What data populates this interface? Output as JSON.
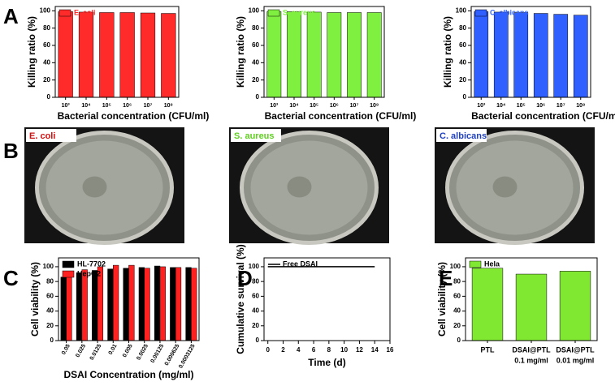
{
  "panel_labels": [
    "A",
    "B",
    "C",
    "D",
    "E"
  ],
  "photos": [
    {
      "label": "E. coli",
      "color": "#d01010"
    },
    {
      "label": "S. aureus",
      "color": "#60d020"
    },
    {
      "label": "C. albicans",
      "color": "#2040c0"
    }
  ],
  "chart_data": [
    {
      "type": "bar",
      "ylabel": "Killing ratio (%)",
      "xlabel": "Bacterial concentration (CFU/ml)",
      "categories": [
        "10³",
        "10⁴",
        "10⁵",
        "10⁶",
        "10⁷",
        "10⁸"
      ],
      "series": [
        {
          "name": "E. coli",
          "color": "#ff2a2a",
          "values": [
            99,
            98.5,
            98,
            98,
            97.5,
            97
          ]
        }
      ],
      "ylim": [
        0,
        105
      ],
      "yticks": [
        0,
        20,
        40,
        60,
        80,
        100
      ]
    },
    {
      "type": "bar",
      "ylabel": "Killing ratio (%)",
      "xlabel": "Bacterial concentration (CFU/ml)",
      "categories": [
        "10³",
        "10⁴",
        "10⁵",
        "10⁶",
        "10⁷",
        "10⁸"
      ],
      "series": [
        {
          "name": "S. aureus",
          "color": "#80f040",
          "values": [
            99,
            99,
            98.5,
            98,
            98,
            98
          ]
        }
      ],
      "ylim": [
        0,
        105
      ],
      "yticks": [
        0,
        20,
        40,
        60,
        80,
        100
      ]
    },
    {
      "type": "bar",
      "ylabel": "Killing ratio (%)",
      "xlabel": "Bacterial concentration (CFU/ml)",
      "categories": [
        "10³",
        "10⁴",
        "10⁵",
        "10⁶",
        "10⁷",
        "10⁸"
      ],
      "series": [
        {
          "name": "C. albicans",
          "color": "#3060ff",
          "values": [
            99,
            98.5,
            98,
            97,
            96,
            95
          ]
        }
      ],
      "ylim": [
        0,
        105
      ],
      "yticks": [
        0,
        20,
        40,
        60,
        80,
        100
      ]
    },
    {
      "type": "bar",
      "ylabel": "Cell viability (%)",
      "xlabel": "DSAI Concentration (mg/ml)",
      "categories": [
        "0.05",
        "0.025",
        "0.0125",
        "0.01",
        "0.005",
        "0.0025",
        "0.00125",
        "0.000625",
        "0.0003125"
      ],
      "series": [
        {
          "name": "HL-7702",
          "color": "#000000",
          "values": [
            86,
            92,
            95,
            97,
            98,
            99,
            101,
            99,
            99
          ]
        },
        {
          "name": "HepG2",
          "color": "#ff2020",
          "values": [
            90,
            96,
            100,
            102,
            102,
            98,
            100,
            99,
            98
          ]
        }
      ],
      "ylim": [
        0,
        112
      ],
      "yticks": [
        0,
        20,
        40,
        60,
        80,
        100
      ]
    },
    {
      "type": "line",
      "ylabel": "Cumulative survival (%)",
      "xlabel": "Time (d)",
      "x": [
        0,
        14
      ],
      "series": [
        {
          "name": "Free DSAI",
          "color": "#000000",
          "values": [
            100,
            100
          ]
        }
      ],
      "xlim": [
        -0.5,
        16
      ],
      "xticks": [
        0,
        2,
        4,
        6,
        8,
        10,
        12,
        14,
        16
      ],
      "ylim": [
        0,
        112
      ],
      "yticks": [
        0,
        20,
        40,
        60,
        80,
        100
      ]
    },
    {
      "type": "bar",
      "ylabel": "Cell viability (%)",
      "categories": [
        "PTL",
        "DSAI@PTL",
        "DSAI@PTL"
      ],
      "category_notes": [
        null,
        "0.1 mg/ml",
        "0.01 mg/ml"
      ],
      "series": [
        {
          "name": "Hela",
          "color": "#80e830",
          "values": [
            98,
            90,
            94
          ]
        }
      ],
      "ylim": [
        0,
        112
      ],
      "yticks": [
        0,
        20,
        40,
        60,
        80,
        100
      ]
    }
  ]
}
